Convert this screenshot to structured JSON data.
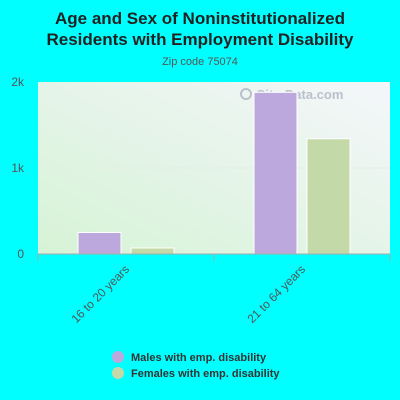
{
  "chart_data": {
    "type": "bar",
    "title_lines": [
      "Age and Sex of Noninstitutionalized",
      "Residents with Employment Disability"
    ],
    "subtitle": "Zip code 75074",
    "categories": [
      "16 to 20 years",
      "21 to 64 years"
    ],
    "series": [
      {
        "name": "Males with emp. disability",
        "values": [
          250,
          1880
        ],
        "color": "#bca8dc"
      },
      {
        "name": "Females with emp. disability",
        "values": [
          70,
          1340
        ],
        "color": "#c4d9a8"
      }
    ],
    "ylim": [
      0,
      2000
    ],
    "yticks": [
      0,
      1000,
      2000
    ],
    "ytick_labels": [
      "0",
      "1k",
      "2k"
    ],
    "legend_position": "bottom",
    "watermark": "City-Data.com"
  }
}
